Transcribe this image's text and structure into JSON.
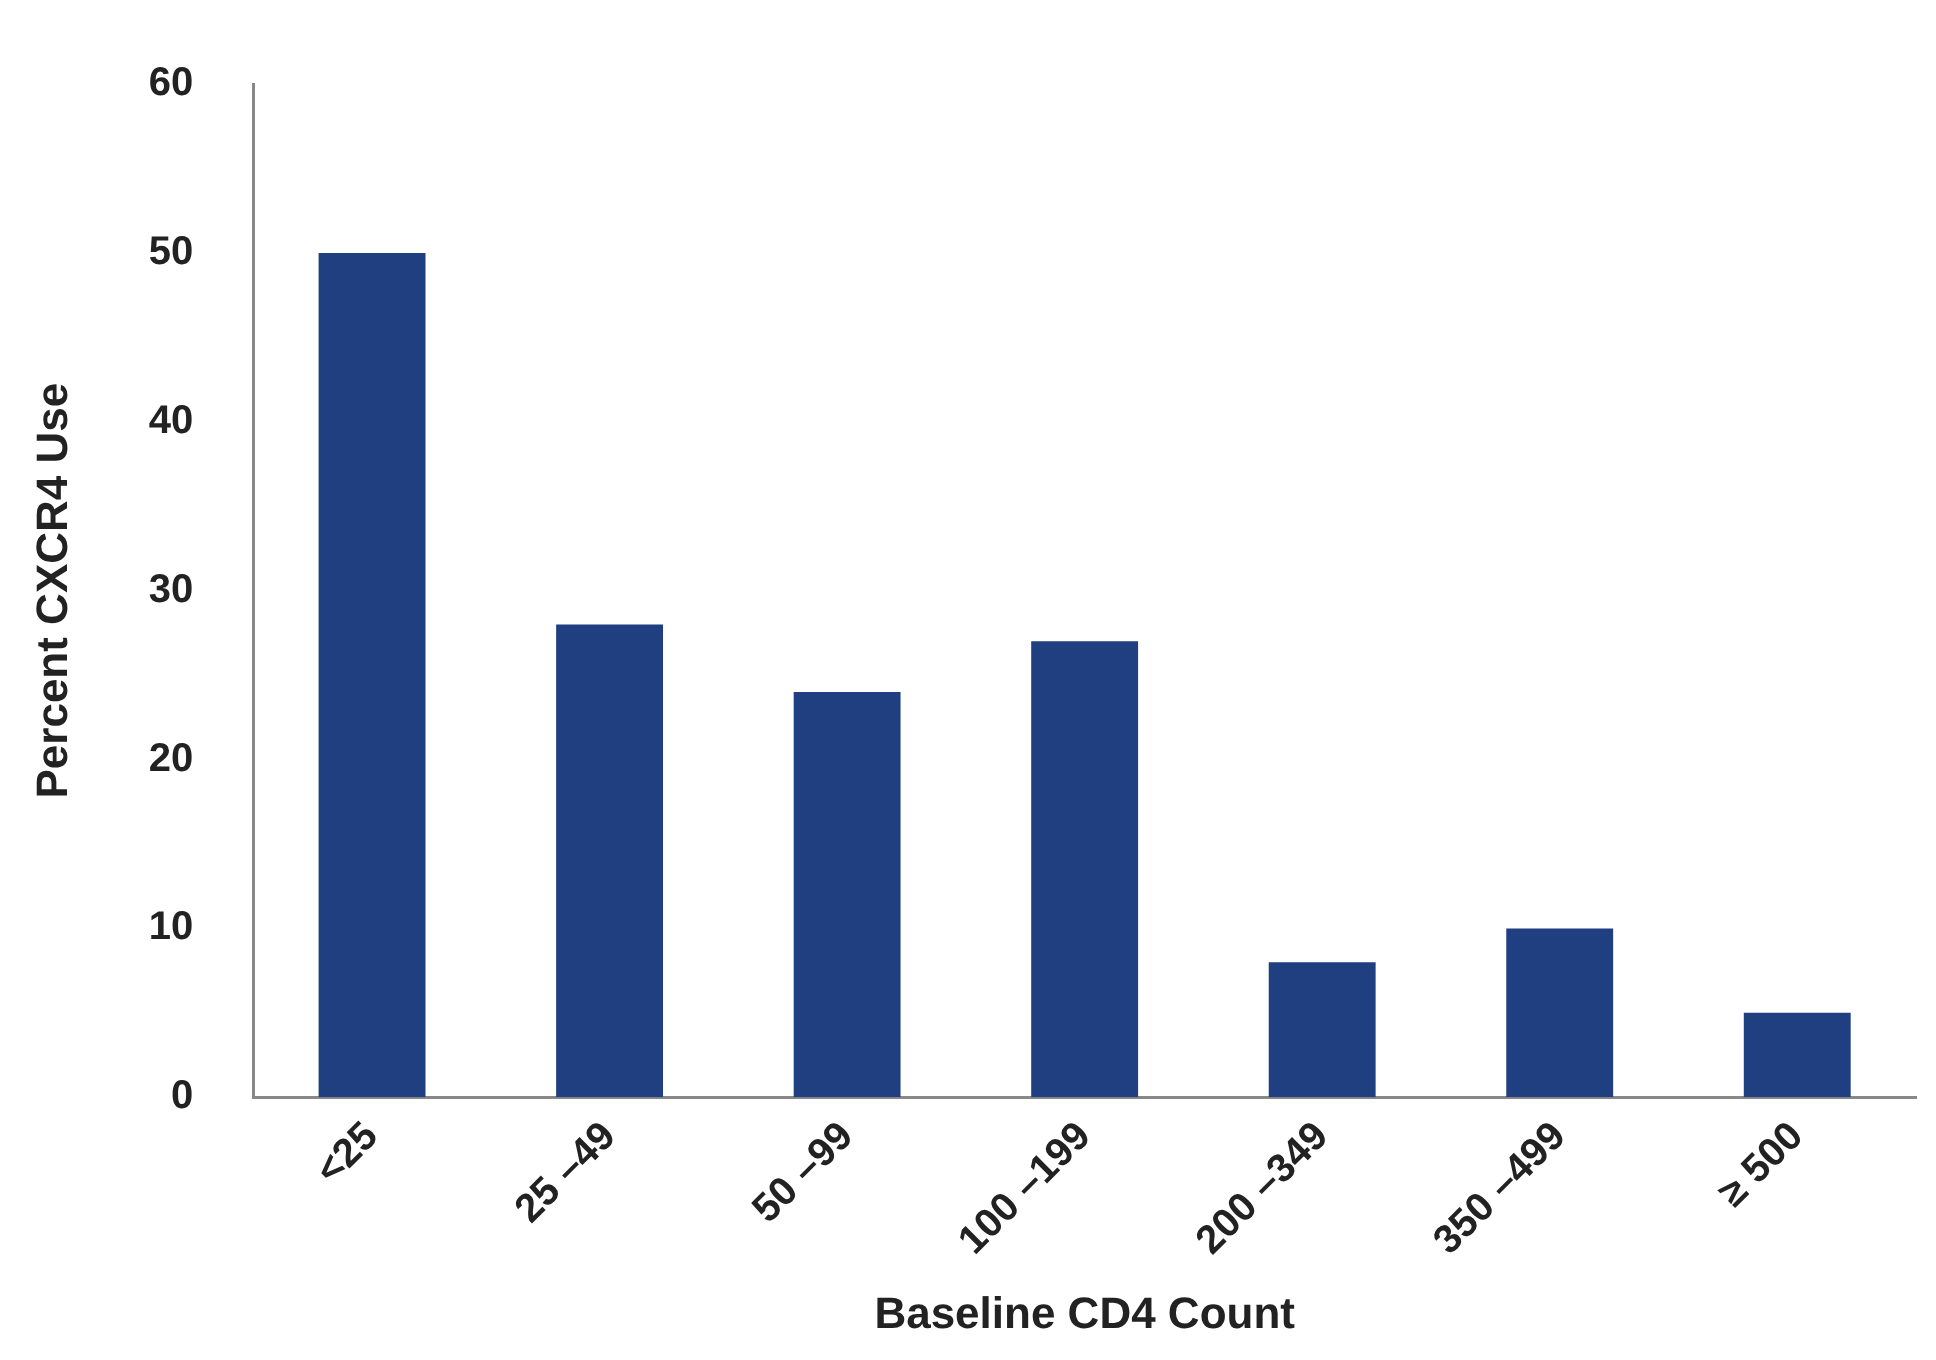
{
  "chart_data": {
    "type": "bar",
    "xlabel": "Baseline CD4 Count",
    "ylabel": "Percent CXCR4 Use",
    "categories": [
      "<25",
      "25 –49",
      "50 –99",
      "100 –199",
      "200 –349",
      "350 –499",
      "≥ 500"
    ],
    "values": [
      50,
      28,
      24,
      27,
      8,
      10,
      5
    ],
    "color": "#1f3f80",
    "ylim": [
      0,
      60
    ],
    "yticks": [
      0,
      10,
      20,
      30,
      40,
      50,
      60
    ],
    "grid": false,
    "legend": false
  }
}
